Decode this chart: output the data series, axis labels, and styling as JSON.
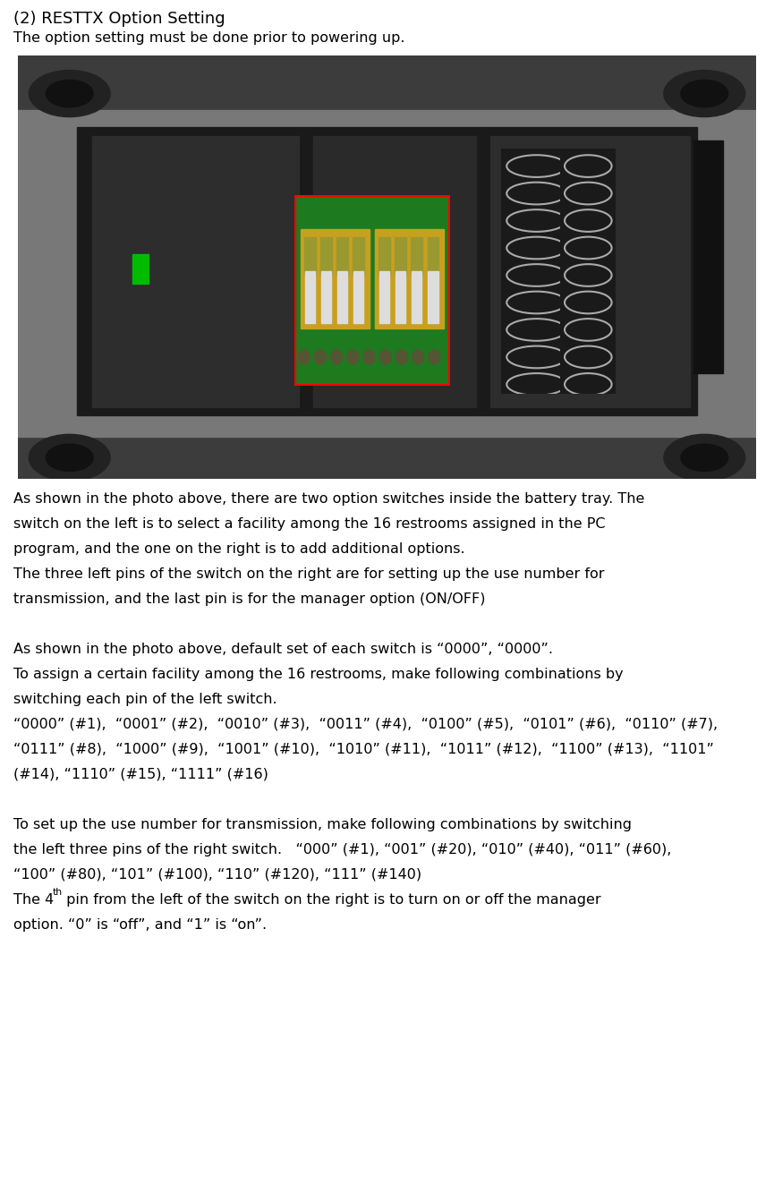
{
  "title": "(2) RESTTX Option Setting",
  "line2": "The option setting must be done prior to powering up.",
  "para1_line1": "As shown in the photo above, there are two option switches inside the battery tray. The",
  "para1_line2": "switch on the left is to select a facility among the 16 restrooms assigned in the PC",
  "para1_line3": "program, and the one on the right is to add additional options.",
  "para1_line4": "The three left pins of the switch on the right are for setting up the use number for",
  "para1_line5": "transmission, and the last pin is for the manager option (ON/OFF)",
  "para2_line1": "As shown in the photo above, default set of each switch is “0000”, “0000”.",
  "para2_line2": "To assign a certain facility among the 16 restrooms, make following combinations by",
  "para2_line3": "switching each pin of the left switch.",
  "para2_line4": "“0000” (#1),  “0001” (#2),  “0010” (#3),  “0011” (#4),  “0100” (#5),  “0101” (#6),  “0110” (#7),",
  "para2_line5": "“0111” (#8),  “1000” (#9),  “1001” (#10),  “1010” (#11),  “1011” (#12),  “1100” (#13),  “1101”",
  "para2_line6": "(#14), “1110” (#15), “1111” (#16)",
  "para3_line1": "To set up the use number for transmission, make following combinations by switching",
  "para3_line2": "the left three pins of the right switch.   “000” (#1), “001” (#20), “010” (#40), “011” (#60),",
  "para3_line3": "“100” (#80), “101” (#100), “110” (#120), “111” (#140)",
  "para3_line4a": "The 4",
  "para3_line4_super": "th",
  "para3_line4b": " pin from the left of the switch on the right is to turn on or off the manager",
  "para3_line5": "option. “0” is “off”, and “1” is “on”.",
  "bg_color": "#ffffff",
  "text_color": "#000000",
  "font_size_title": 13,
  "font_size_body": 11.5
}
